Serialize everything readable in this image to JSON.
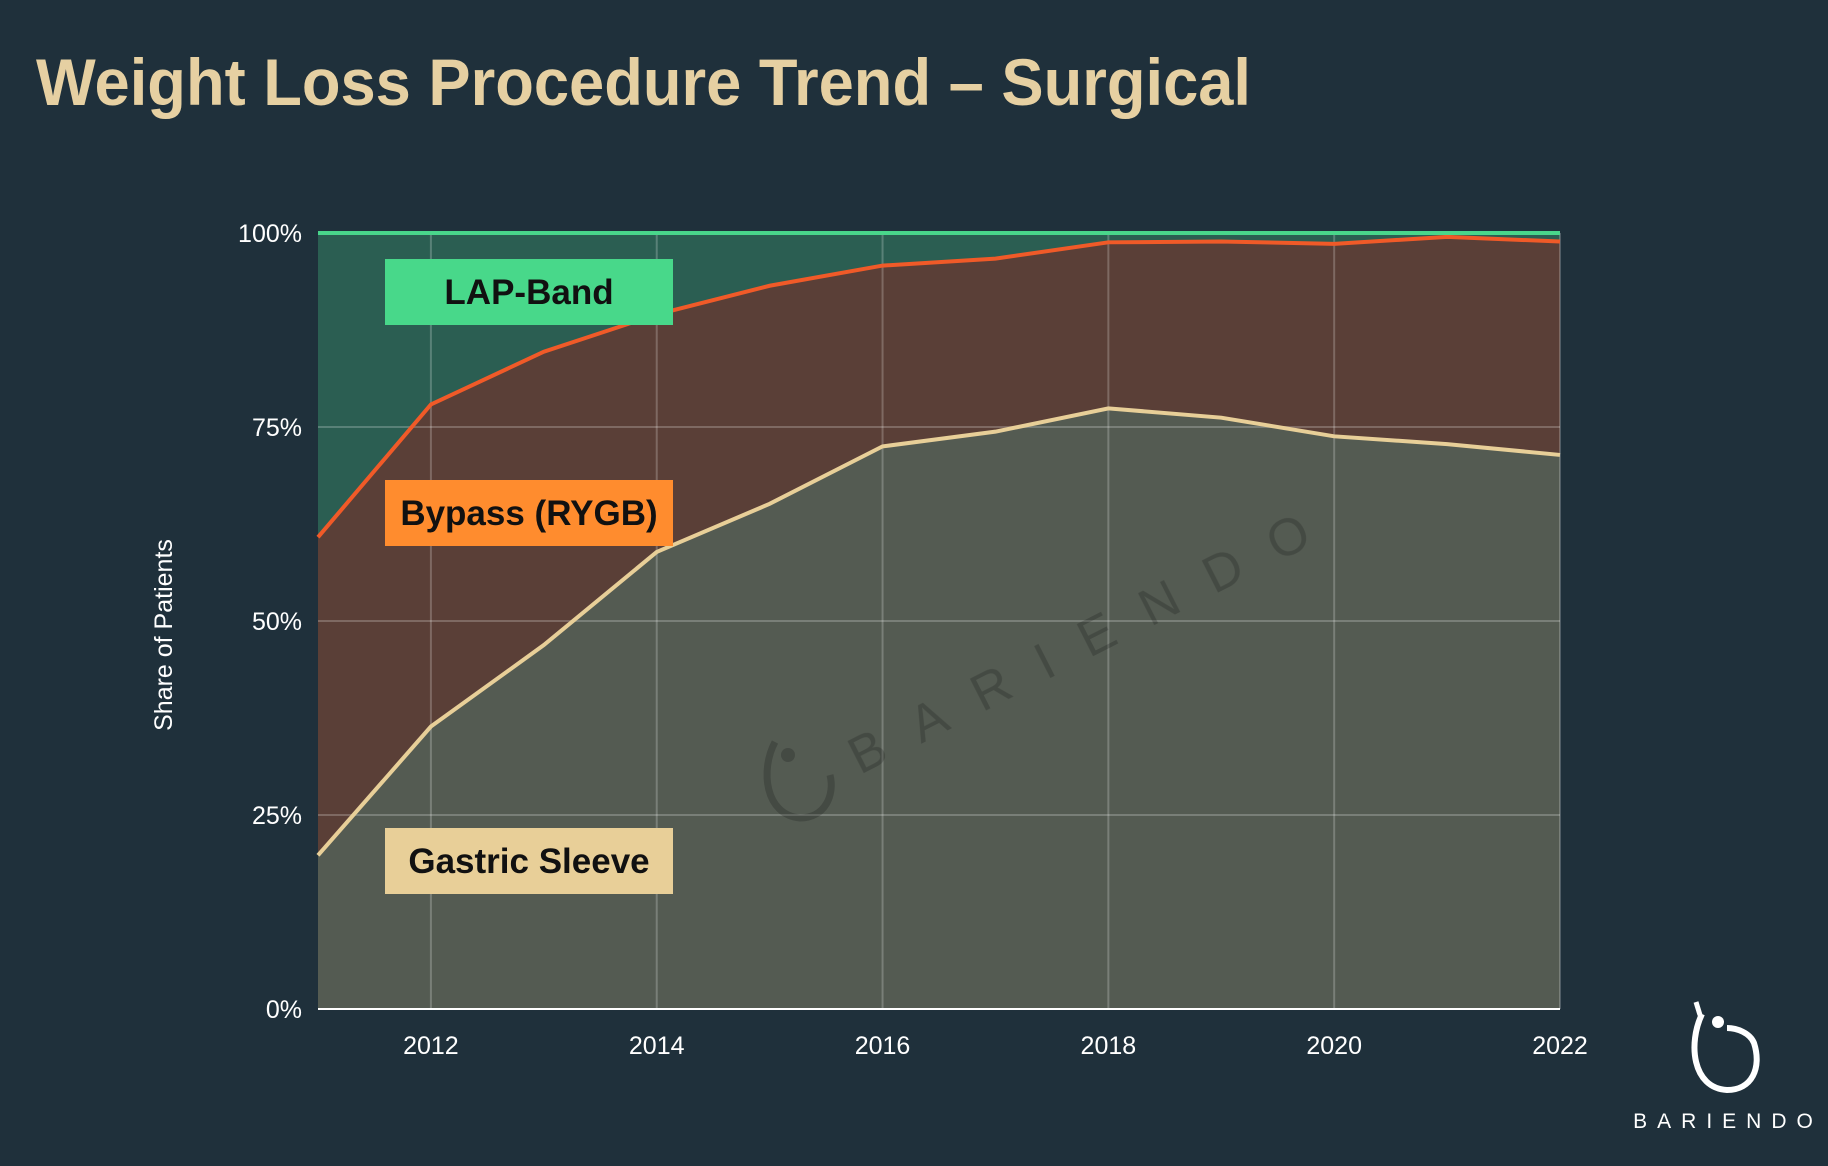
{
  "title": "Weight Loss Procedure Trend – Surgical",
  "brand": "BARIENDO",
  "watermark": "BARIENDO",
  "chart_data": {
    "type": "area",
    "stacked": true,
    "normalized": true,
    "title": "Weight Loss Procedure Trend – Surgical",
    "xlabel": "",
    "ylabel": "Share of Patients",
    "x": [
      2011,
      2012,
      2013,
      2014,
      2015,
      2016,
      2017,
      2018,
      2019,
      2020,
      2021,
      2022
    ],
    "xlim": [
      2011,
      2022
    ],
    "xticks": [
      "2012",
      "2014",
      "2016",
      "2018",
      "2020",
      "2022"
    ],
    "ylim": [
      0,
      100
    ],
    "yticks": [
      "0%",
      "25%",
      "50%",
      "75%",
      "100%"
    ],
    "grid": true,
    "legend_placement": "inline-left",
    "series": [
      {
        "name": "Gastric Sleeve",
        "color": "#e8cf98",
        "fill": "#545b52",
        "values": [
          19.8,
          36.4,
          46.9,
          58.9,
          65.1,
          72.5,
          74.4,
          77.4,
          76.2,
          73.8,
          72.8,
          71.4
        ]
      },
      {
        "name": "Bypass (RYGB)",
        "color": "#f05a28",
        "fill": "#5a3f37",
        "label_color": "#ff8c2e",
        "values": [
          41.0,
          41.5,
          37.8,
          30.6,
          28.1,
          23.3,
          22.3,
          21.4,
          22.7,
          24.8,
          26.7,
          27.5
        ]
      },
      {
        "name": "LAP-Band",
        "color": "#49d68b",
        "fill": "#2b5e52",
        "label_color": "#48d88a",
        "values": [
          39.2,
          22.1,
          15.3,
          10.5,
          6.8,
          4.2,
          3.3,
          1.2,
          1.1,
          1.4,
          0.5,
          1.1
        ]
      }
    ]
  }
}
